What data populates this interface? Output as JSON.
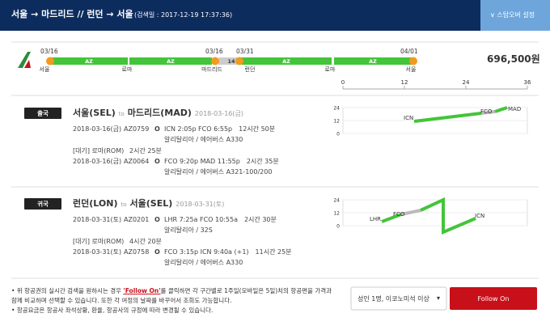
{
  "header": {
    "title": "서울 → 마드리드 // 런던 → 서울",
    "search_date": "(검색일 : 2017-12-19 17:37:36)",
    "stopover_button": "∨ 스탑오버 설정"
  },
  "timeline": {
    "dates": [
      "03/16",
      "03/16",
      "03/31",
      "04/01"
    ],
    "cities": [
      "서울",
      "로마",
      "마드리드",
      "런던",
      "로마",
      "서울"
    ],
    "segments": [
      "AZ",
      "AZ",
      "AZ",
      "AZ"
    ],
    "stay_days": "14",
    "price": "696,500원",
    "axis_ticks": [
      "0",
      "12",
      "24",
      "36"
    ]
  },
  "itineraries": [
    {
      "badge": "출국",
      "origin": "서울(SEL)",
      "to": "to",
      "destination": "마드리드(MAD)",
      "date": "2018-03-16(금)",
      "rows": [
        {
          "date": "2018-03-16(금)",
          "flight": "AZ0759",
          "status": "O",
          "route": "ICN 2:05p FCO 6:55p",
          "duration": "12시간 50분",
          "carrier": "알리탈리아 / 에어버스 A330"
        },
        {
          "layover": "[대기] 로마(ROM)",
          "duration": "2시간 25분"
        },
        {
          "date": "2018-03-16(금)",
          "flight": "AZ0064",
          "status": "O",
          "route": "FCO 9:20p MAD 11:55p",
          "duration": "2시간 35분",
          "carrier": "알리탈리아 / 에어버스 A321-100/200"
        }
      ],
      "chart_ticks": [
        "24",
        "12",
        "0"
      ],
      "chart_labels": [
        "ICN",
        "FCO",
        "MAD"
      ]
    },
    {
      "badge": "귀국",
      "origin": "런던(LON)",
      "to": "to",
      "destination": "서울(SEL)",
      "date": "2018-03-31(토)",
      "rows": [
        {
          "date": "2018-03-31(토)",
          "flight": "AZ0201",
          "status": "O",
          "route": "LHR 7:25a FCO 10:55a",
          "duration": "2시간 30분",
          "carrier": "알리탈리아 / 32S"
        },
        {
          "layover": "[대기] 로마(ROM)",
          "duration": "4시간 20분"
        },
        {
          "date": "2018-03-31(토)",
          "flight": "AZ0758",
          "status": "O",
          "route": "FCO 3:15p ICN 9:40a (+1)",
          "duration": "11시간 25분",
          "carrier": "알리탈리아 / 에어버스 A330"
        }
      ],
      "chart_ticks": [
        "24",
        "12",
        "0"
      ],
      "chart_labels": [
        "LHR",
        "FCO",
        "ICN"
      ]
    }
  ],
  "notes": {
    "note1_before": "위 항공권의 실시간 검색을 원하시는 경우 ",
    "note1_link": "'Follow On'",
    "note1_after": "를 클릭하면 각 구간별로 1주일(모바일은 5일)치의 항공편을 가격과 함께 비교하며 선택할 수 있습니다. 또한 각 여정의 날짜를 바꾸어서 조회도 가능합니다.",
    "note2": "항공요금은 항공사 좌석상황, 환율, 항공사의 규정에 따라 변경될 수 있습니다."
  },
  "controls": {
    "passenger_select": "성인 1명, 이코노미석 이상",
    "follow_on": "Follow On"
  }
}
